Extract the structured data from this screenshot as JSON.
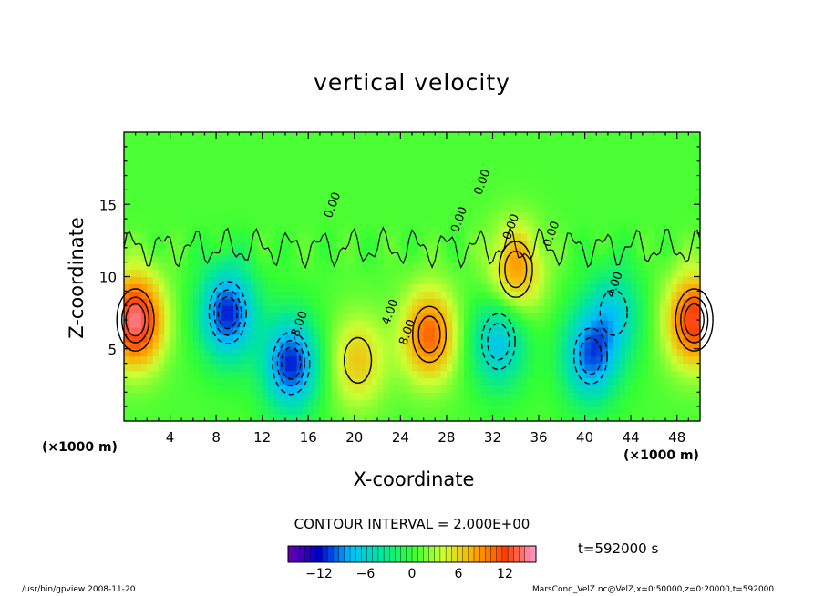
{
  "title": "vertical velocity",
  "chart_data": {
    "type": "heatmap",
    "title": "vertical velocity",
    "xlabel": "X-coordinate",
    "ylabel": "Z-coordinate",
    "x_unit": "(×1000 m)",
    "xlim": [
      0,
      50
    ],
    "ylim": [
      0,
      20
    ],
    "x_ticks": [
      4,
      8,
      12,
      16,
      20,
      24,
      28,
      32,
      36,
      40,
      44,
      48
    ],
    "y_ticks": [
      5,
      10,
      15
    ],
    "colorbar": {
      "ticks": [
        -12,
        -6,
        0,
        6,
        12
      ],
      "range": [
        -16,
        16
      ],
      "colors": [
        "#6a00a8",
        "#0000cc",
        "#00bfff",
        "#00e5a0",
        "#33ff33",
        "#ccff33",
        "#ffaa00",
        "#ff4000",
        "#ff99cc"
      ]
    },
    "contour_interval": 2.0,
    "contour_labels": [
      "0.00",
      "0.00",
      "0.00",
      "0.00",
      "0.00",
      "4.00",
      "8.00",
      "4.00",
      "-8.00"
    ],
    "features": [
      {
        "type": "updraft",
        "x": 1.0,
        "z": 7.0,
        "peak": 14
      },
      {
        "type": "updraft",
        "x": 49.5,
        "z": 7.0,
        "peak": 12
      },
      {
        "type": "updraft",
        "x": 26.5,
        "z": 6.0,
        "peak": 10
      },
      {
        "type": "updraft",
        "x": 20.3,
        "z": 4.2,
        "peak": 6
      },
      {
        "type": "updraft",
        "x": 34.0,
        "z": 10.5,
        "peak": 8
      },
      {
        "type": "downdraft",
        "x": 9.0,
        "z": 7.5,
        "peak": -12
      },
      {
        "type": "downdraft",
        "x": 14.5,
        "z": 4.0,
        "peak": -12
      },
      {
        "type": "downdraft",
        "x": 32.5,
        "z": 5.5,
        "peak": -8
      },
      {
        "type": "downdraft",
        "x": 40.5,
        "z": 4.5,
        "peak": -10
      },
      {
        "type": "downdraft",
        "x": 42.5,
        "z": 7.5,
        "peak": -6
      }
    ]
  },
  "contour_interval_text": "CONTOUR INTERVAL = 2.000E+00",
  "time_text": "t=592000 s",
  "footer_left": "/usr/bin/gpview   2008-11-20",
  "footer_right": "MarsCond_VelZ.nc@VelZ,x=0:50000,z=0:20000,t=592000"
}
